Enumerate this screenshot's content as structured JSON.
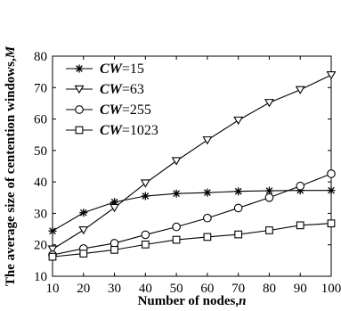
{
  "chart_data": {
    "type": "line",
    "xlabel_prefix": "Number of nodes,",
    "xlabel_var": "n",
    "ylabel_prefix": "The average size of centention windows,",
    "ylabel_var": "M",
    "x": [
      10,
      20,
      30,
      40,
      50,
      60,
      70,
      80,
      90,
      100
    ],
    "xlim": [
      10,
      100
    ],
    "ylim": [
      10,
      80
    ],
    "xticks": [
      10,
      20,
      30,
      40,
      50,
      60,
      70,
      80,
      90,
      100
    ],
    "yticks": [
      10,
      20,
      30,
      40,
      50,
      60,
      70,
      80
    ],
    "grid": false,
    "legend_position": "top-left",
    "series": [
      {
        "name_var": "CW",
        "name_val": "=15",
        "marker": "asterisk",
        "values": [
          24.4,
          30.2,
          33.6,
          35.5,
          36.3,
          36.6,
          37.0,
          37.2,
          37.3,
          37.3
        ]
      },
      {
        "name_var": "CW",
        "name_val": "=63",
        "marker": "triangle-down",
        "values": [
          18.6,
          24.7,
          31.8,
          39.6,
          46.7,
          53.3,
          59.6,
          65.2,
          69.3,
          74.0
        ]
      },
      {
        "name_var": "CW",
        "name_val": "=255",
        "marker": "circle",
        "values": [
          16.8,
          18.8,
          20.5,
          23.2,
          25.7,
          28.5,
          31.7,
          35.0,
          38.7,
          42.6
        ]
      },
      {
        "name_var": "CW",
        "name_val": "=1023",
        "marker": "square",
        "values": [
          16.2,
          17.2,
          18.4,
          20.1,
          21.6,
          22.5,
          23.3,
          24.6,
          26.2,
          26.8
        ]
      }
    ]
  }
}
